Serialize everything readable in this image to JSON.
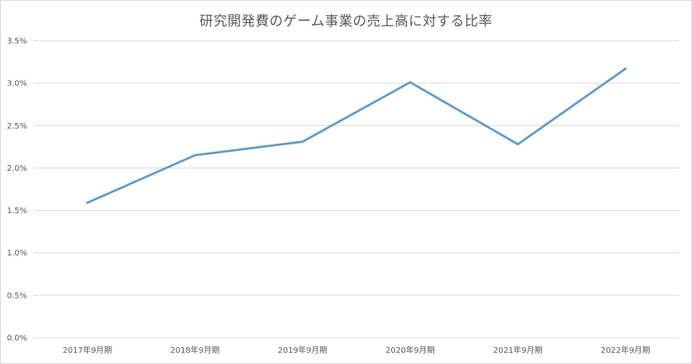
{
  "chart_data": {
    "type": "line",
    "title": "研究開発費のゲーム事業の売上高に対する比率",
    "xlabel": "",
    "ylabel": "",
    "categories": [
      "2017年9月期",
      "2018年9月期",
      "2019年9月期",
      "2020年9月期",
      "2021年9月期",
      "2022年9月期"
    ],
    "series": [
      {
        "values": [
          1.59,
          2.15,
          2.31,
          3.01,
          2.28,
          3.17
        ],
        "color": "#5b9bd5"
      }
    ],
    "ylim": [
      0,
      3.5
    ],
    "yticks": [
      "0.0%",
      "0.5%",
      "1.0%",
      "1.5%",
      "2.0%",
      "2.5%",
      "3.0%",
      "3.5%"
    ],
    "grid": true,
    "legend": "none"
  }
}
